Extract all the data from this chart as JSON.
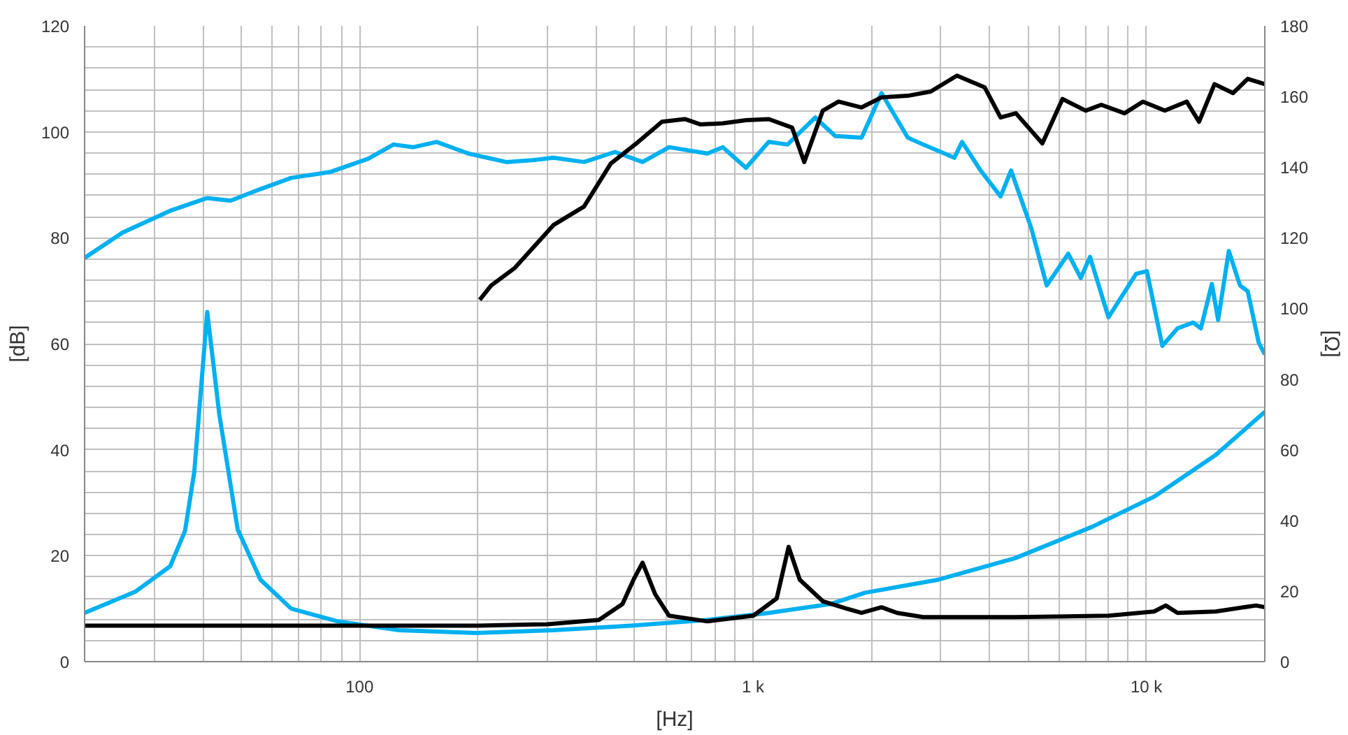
{
  "chart_data": {
    "type": "line",
    "xlabel": "[Hz]",
    "ylabel": "[dB]",
    "y2label": "[Ω]",
    "log": "x",
    "grid": true,
    "marker": "none",
    "line_style": "solid",
    "xlim": [
      20,
      20000
    ],
    "xticks": [
      {
        "value": 20,
        "label": null
      },
      {
        "value": 30,
        "label": null
      },
      {
        "value": 40,
        "label": null
      },
      {
        "value": 50,
        "label": null
      },
      {
        "value": 60,
        "label": null
      },
      {
        "value": 70,
        "label": null
      },
      {
        "value": 80,
        "label": null
      },
      {
        "value": 90,
        "label": null
      },
      100,
      {
        "value": 200,
        "label": null
      },
      {
        "value": 300,
        "label": null
      },
      {
        "value": 400,
        "label": null
      },
      {
        "value": 500,
        "label": null
      },
      {
        "value": 600,
        "label": null
      },
      {
        "value": 700,
        "label": null
      },
      {
        "value": 800,
        "label": null
      },
      {
        "value": 900,
        "label": null
      },
      {
        "value": 1000,
        "label": "1 k"
      },
      {
        "value": 2000,
        "label": null
      },
      {
        "value": 3000,
        "label": null
      },
      {
        "value": 4000,
        "label": null
      },
      {
        "value": 5000,
        "label": null
      },
      {
        "value": 6000,
        "label": null
      },
      {
        "value": 7000,
        "label": null
      },
      {
        "value": 8000,
        "label": null
      },
      {
        "value": 9000,
        "label": null
      },
      {
        "value": 10000,
        "label": "10 k"
      },
      {
        "value": 20000,
        "label": null
      }
    ],
    "ylim": [
      0,
      120
    ],
    "yticks": [
      0,
      {
        "value": 4,
        "label": null
      },
      {
        "value": 8,
        "label": null
      },
      {
        "value": 12,
        "label": null
      },
      {
        "value": 16,
        "label": null
      },
      20,
      {
        "value": 24,
        "label": null
      },
      {
        "value": 28,
        "label": null
      },
      {
        "value": 32,
        "label": null
      },
      {
        "value": 36,
        "label": null
      },
      40,
      {
        "value": 44,
        "label": null
      },
      {
        "value": 48,
        "label": null
      },
      {
        "value": 52,
        "label": null
      },
      {
        "value": 56,
        "label": null
      },
      60,
      {
        "value": 64,
        "label": null
      },
      {
        "value": 68,
        "label": null
      },
      {
        "value": 72,
        "label": null
      },
      {
        "value": 76,
        "label": null
      },
      80,
      {
        "value": 84,
        "label": null
      },
      {
        "value": 88,
        "label": null
      },
      {
        "value": 92,
        "label": null
      },
      {
        "value": 96,
        "label": null
      },
      100,
      {
        "value": 104,
        "label": null
      },
      {
        "value": 108,
        "label": null
      },
      {
        "value": 112,
        "label": null
      },
      {
        "value": 116,
        "label": null
      },
      120
    ],
    "y2lim": [
      0,
      180
    ],
    "y2ticks": [
      0,
      20,
      40,
      60,
      80,
      100,
      120,
      140,
      160,
      180
    ],
    "series": [
      {
        "color": "#00b0f0",
        "x": [
          20,
          25,
          33,
          41,
          47,
          56,
          67,
          84,
          105,
          122,
          137,
          157,
          189,
          236,
          271,
          311,
          372,
          446,
          524,
          612,
          766,
          838,
          960,
          1097,
          1224,
          1440,
          1619,
          1888,
          2122,
          2475,
          2709,
          3250,
          3400,
          3790,
          4260,
          4530,
          5100,
          5580,
          6330,
          6810,
          7190,
          8010,
          9420,
          10030,
          10980,
          12000,
          13150,
          13760,
          14670,
          15220,
          16200,
          17300,
          18100,
          19300,
          20000
        ],
        "values": [
          76.2,
          81,
          85.1,
          87.5,
          87,
          89.2,
          91.3,
          92.4,
          94.9,
          97.6,
          97.1,
          98.1,
          95.9,
          94.3,
          94.6,
          95.1,
          94.3,
          96.2,
          94.3,
          97.1,
          95.9,
          97.1,
          93.2,
          98.1,
          97.6,
          102.7,
          99.2,
          98.9,
          107.3,
          98.9,
          97.6,
          95.1,
          98.1,
          92.7,
          87.8,
          92.7,
          81.8,
          71,
          77,
          72.4,
          76.4,
          65,
          73.2,
          73.7,
          59.6,
          62.9,
          64,
          62.9,
          71.3,
          64.5,
          77.5,
          71,
          69.9,
          60.2,
          58
        ]
      },
      {
        "color": "#000000",
        "x": [
          202,
          216,
          248,
          311,
          372,
          435,
          511,
          587,
          671,
          736,
          838,
          960,
          1097,
          1257,
          1350,
          1505,
          1650,
          1888,
          2122,
          2475,
          2830,
          3300,
          3880,
          4260,
          4660,
          5440,
          6120,
          7010,
          7680,
          8800,
          9800,
          11140,
          12660,
          13610,
          14900,
          16600,
          18100,
          20000
        ],
        "values": [
          68.3,
          71,
          74.3,
          82.4,
          85.9,
          94,
          98.1,
          101.9,
          102.4,
          101.4,
          101.6,
          102.2,
          102.4,
          100.8,
          94.3,
          104,
          105.7,
          104.6,
          106.5,
          106.8,
          107.6,
          110.6,
          108.4,
          102.7,
          103.5,
          97.8,
          106.2,
          104,
          105.1,
          103.5,
          105.7,
          104,
          105.7,
          101.9,
          109,
          107.3,
          110,
          109
        ]
      },
      {
        "color": "#00b0f0",
        "axis": "y2",
        "x": [
          20,
          27,
          33,
          36,
          38,
          41,
          44,
          49,
          56,
          67,
          88,
          126,
          198,
          311,
          491,
          766,
          1097,
          1574,
          1927,
          2960,
          4640,
          7290,
          10460,
          15000,
          20000
        ],
        "values": [
          13.8,
          19.9,
          27,
          37,
          53.7,
          99,
          70,
          37.4,
          23.2,
          15,
          11.4,
          8.9,
          8.1,
          8.9,
          10.2,
          11.8,
          13.8,
          16.3,
          19.5,
          23.2,
          29.3,
          38.2,
          46.7,
          58.5,
          70.7
        ]
      },
      {
        "color": "#000000",
        "axis": "y2",
        "x": [
          20,
          50,
          100,
          200,
          300,
          406,
          466,
          497,
          524,
          564,
          612,
          766,
          1002,
          1149,
          1232,
          1315,
          1505,
          1730,
          1888,
          2122,
          2325,
          2710,
          4640,
          8010,
          10460,
          11200,
          12000,
          15000,
          19000,
          20000
        ],
        "values": [
          10.2,
          10.2,
          10.2,
          10.2,
          10.6,
          11.8,
          16.3,
          23.2,
          28,
          19.1,
          13,
          11.4,
          13,
          17.9,
          32.5,
          23.2,
          17.1,
          15.0,
          13.8,
          15.4,
          13.8,
          12.6,
          12.6,
          13,
          14.2,
          15.9,
          13.8,
          14.2,
          15.9,
          15.4
        ]
      }
    ]
  }
}
